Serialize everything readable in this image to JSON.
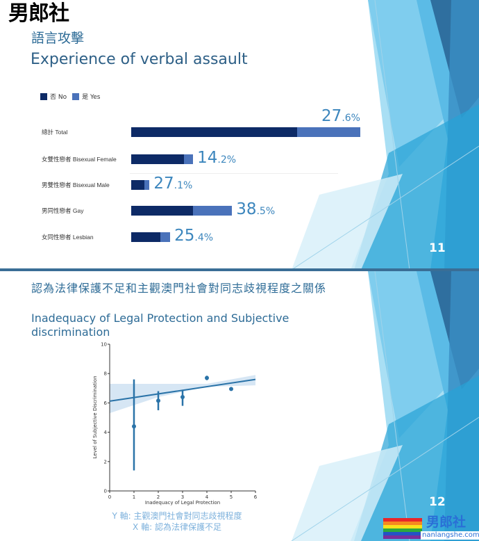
{
  "watermark": "男郎社",
  "slide1": {
    "title_zh": "語言攻擊",
    "title_en": "Experience of verbal assault",
    "page_number": "11"
  },
  "slide2": {
    "title_zh": "認為法律保護不足和主觀澳門社會對同志歧視程度之關係",
    "title_en": "Inadequacy of Legal Protection and Subjective discrimination",
    "page_number": "12",
    "y_axis_note": "Y 軸: 主觀澳門社會對同志歧視程度",
    "x_axis_note": "X 軸: 認為法律保護不足"
  },
  "logo": {
    "text": "男郎社",
    "url_text": "nanlangshe.com"
  },
  "colors": {
    "no": "#0d2a66",
    "yes": "#4a72ba",
    "accent": "#3c86bd",
    "scatter": "#2a73a8"
  },
  "chart_data": [
    {
      "type": "bar",
      "stacked": true,
      "orientation": "horizontal",
      "legend": [
        "否 No",
        "是 Yes"
      ],
      "legend_position": "top-left",
      "categories": [
        "總計 Total",
        "女雙性戀者 Bisexual Female",
        "男雙性戀者 Bisexual Male",
        "男同性戀者 Gay",
        "女同性戀者 Lesbian"
      ],
      "yes_percent": [
        27.6,
        14.2,
        27.1,
        38.5,
        25.4
      ],
      "labels": [
        {
          "int": "27",
          "dec": ".6%"
        },
        {
          "int": "14",
          "dec": ".2%"
        },
        {
          "int": "27",
          "dec": ".1%"
        },
        {
          "int": "38",
          "dec": ".5%"
        },
        {
          "int": "25",
          "dec": ".4%"
        }
      ],
      "relative_totals": [
        100,
        27,
        8,
        44,
        17
      ]
    },
    {
      "type": "scatter",
      "xlabel": "Inadequacy of Legal Protection",
      "ylabel": "Level of Subjective Discrimination",
      "xlim": [
        0,
        6
      ],
      "ylim": [
        0,
        10
      ],
      "xticks": [
        "0",
        "1",
        "2",
        "3",
        "4",
        "5",
        "6"
      ],
      "yticks": [
        "0",
        "2",
        "4",
        "6",
        "8",
        "10"
      ],
      "points": [
        {
          "x": 1,
          "y": 4.4,
          "err_low": 1.4,
          "err_high": 7.6
        },
        {
          "x": 2,
          "y": 6.15,
          "err_low": 5.5,
          "err_high": 6.8
        },
        {
          "x": 3,
          "y": 6.4,
          "err_low": 5.8,
          "err_high": 6.9
        },
        {
          "x": 4,
          "y": 7.7,
          "err_low": 7.55,
          "err_high": 7.85
        },
        {
          "x": 5,
          "y": 6.95,
          "err_low": 6.85,
          "err_high": 7.05
        }
      ],
      "regression": {
        "x": [
          0,
          6
        ],
        "y": [
          6.12,
          7.6
        ]
      },
      "confidence_band": {
        "x": [
          0,
          2,
          4,
          6
        ],
        "low": [
          5.3,
          6.4,
          7.1,
          7.2
        ],
        "high": [
          7.3,
          7.3,
          7.3,
          7.9
        ]
      },
      "grid": false
    }
  ]
}
